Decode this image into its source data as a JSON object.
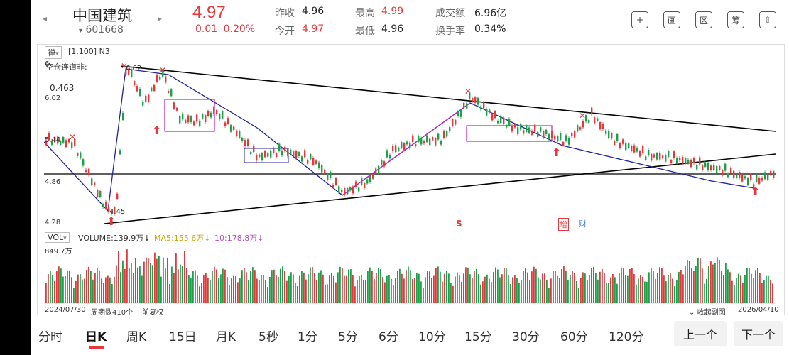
{
  "header": {
    "stock_name": "中国建筑",
    "stock_code": "601668",
    "price": "4.97",
    "change": "0.01",
    "change_pct": "0.20%",
    "stats": [
      {
        "label": "昨收",
        "value": "4.96",
        "up": false
      },
      {
        "label": "今开",
        "value": "4.97",
        "up": true
      },
      {
        "label": "最高",
        "value": "4.99",
        "up": true
      },
      {
        "label": "最低",
        "value": "4.96",
        "up": false
      },
      {
        "label": "成交额",
        "value": "6.96亿",
        "up": false
      },
      {
        "label": "换手率",
        "value": "0.34%",
        "up": false
      }
    ],
    "icons": [
      "plus-icon",
      "draw-icon",
      "range-icon",
      "chip-icon",
      "share-icon"
    ],
    "icon_glyphs": [
      "+",
      "画",
      "区",
      "筹",
      "⇧"
    ]
  },
  "chart": {
    "indicator_select": "禅",
    "param": "[1,100] N3",
    "formula_label": "空仓连道非:",
    "formula_value": "0.463",
    "y_labels": [
      "6.",
      "6.02",
      "5.44",
      "4.86",
      "4.28"
    ],
    "high_label": "6.62",
    "low_label": "4.45",
    "marker_s": "S",
    "marker_zeng": "增",
    "marker_cai": "财"
  },
  "volume": {
    "select": "VOL",
    "volume_label": "VOLUME:139.9万↓",
    "ma5_label": "MA5:155.6万↓",
    "ma10_label": "10:178.8万↓",
    "max_label": "849.7万"
  },
  "footer_bar": {
    "start_date": "2024/07/30",
    "cycle": "周期数410个",
    "adjust": "前复权",
    "collapse": "收起副图",
    "end_date": "2026/04/10"
  },
  "tabs": [
    "分时",
    "日K",
    "周K",
    "15日",
    "月K",
    "5秒",
    "1分",
    "5分",
    "6分",
    "10分",
    "15分",
    "30分",
    "60分",
    "120分"
  ],
  "active_tab": "日K",
  "buttons": {
    "prev": "上一个",
    "next": "下一个"
  },
  "colors": {
    "up": "#e4393c",
    "down": "#1aa14a",
    "accent": "#e4393c"
  }
}
